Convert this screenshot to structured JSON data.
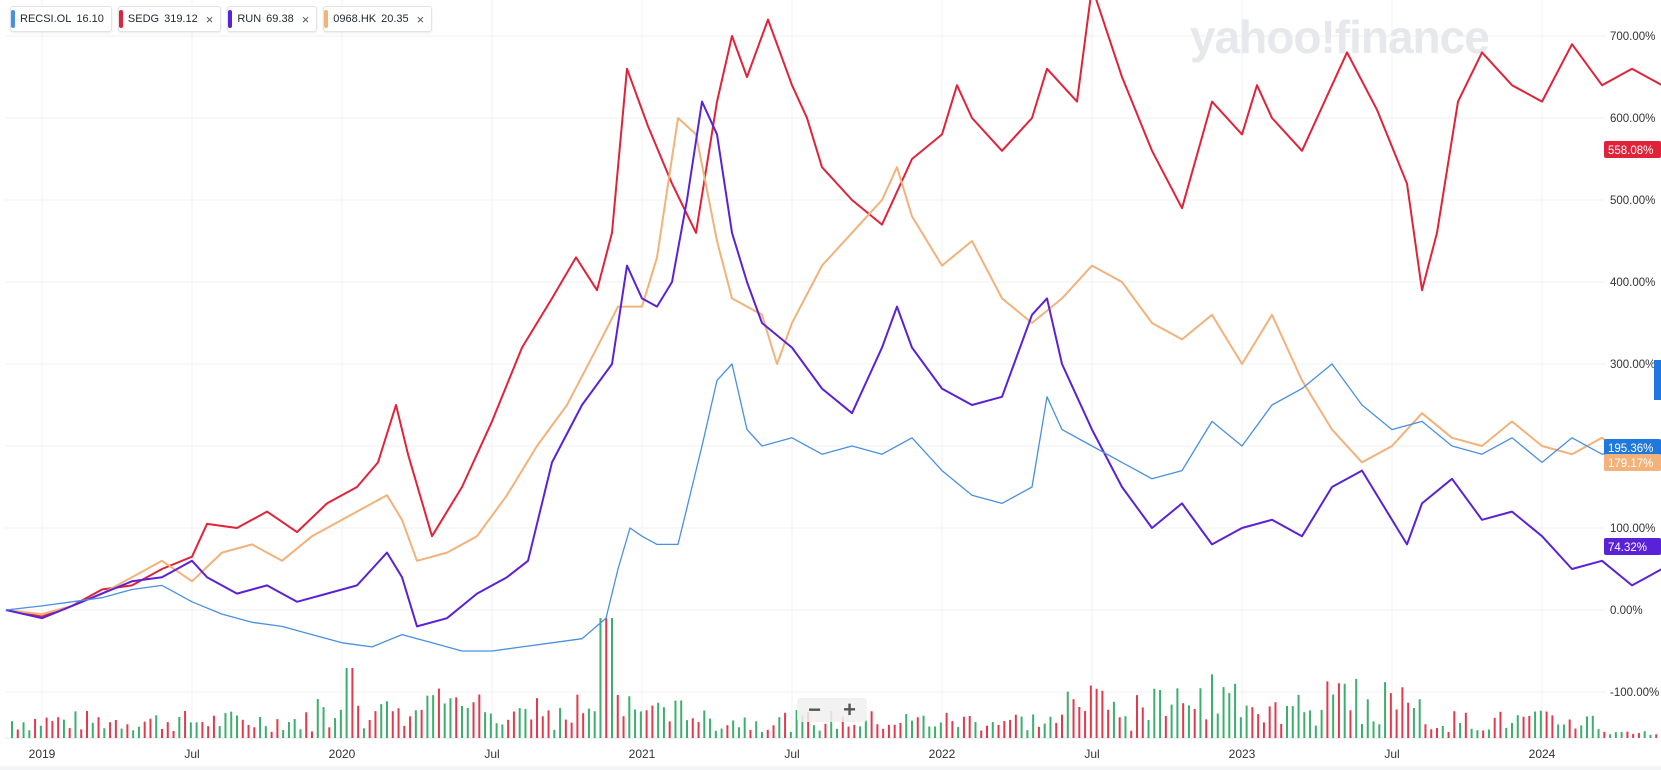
{
  "legend": [
    {
      "symbol": "RECSI.OL",
      "value": "16.10",
      "color": "#4a90e2",
      "closable": false
    },
    {
      "symbol": "SEDG",
      "value": "319.12",
      "color": "#e0233a",
      "closable": true
    },
    {
      "symbol": "RUN",
      "value": "69.38",
      "color": "#5a22d8",
      "closable": true
    },
    {
      "symbol": "0968.HK",
      "value": "20.35",
      "color": "#f2b27a",
      "closable": true
    }
  ],
  "watermark": "yahoo!finance",
  "zoom": {
    "minus": "−",
    "plus": "+"
  },
  "chart_data": {
    "type": "line",
    "x_labels": [
      "2019",
      "Jul",
      "2020",
      "Jul",
      "2021",
      "Jul",
      "2022",
      "Jul",
      "2023",
      "Jul",
      "2024"
    ],
    "ylim": [
      -150,
      750
    ],
    "y_ticks": [
      "700.00%",
      "600.00%",
      "500.00%",
      "400.00%",
      "300.00%",
      "200.00%",
      "100.00%",
      "0.00%",
      "-100.00%"
    ],
    "end_labels": [
      {
        "text": "558.08%",
        "color": "#e0233a",
        "value": 558.08
      },
      {
        "text": "195.36%",
        "color": "#1f78e0",
        "value": 195.36
      },
      {
        "text": "179.17%",
        "color": "#f2b27a",
        "value": 179.17
      },
      {
        "text": "74.32%",
        "color": "#5a22d8",
        "value": 74.32
      }
    ],
    "series": [
      {
        "name": "SEDG",
        "color": "#e0233a",
        "points": [
          [
            2018.88,
            0
          ],
          [
            2019.0,
            -8
          ],
          [
            2019.1,
            5
          ],
          [
            2019.2,
            25
          ],
          [
            2019.3,
            30
          ],
          [
            2019.4,
            50
          ],
          [
            2019.5,
            65
          ],
          [
            2019.55,
            105
          ],
          [
            2019.65,
            100
          ],
          [
            2019.75,
            120
          ],
          [
            2019.85,
            95
          ],
          [
            2019.95,
            130
          ],
          [
            2020.05,
            150
          ],
          [
            2020.12,
            180
          ],
          [
            2020.18,
            250
          ],
          [
            2020.22,
            190
          ],
          [
            2020.3,
            90
          ],
          [
            2020.4,
            150
          ],
          [
            2020.5,
            230
          ],
          [
            2020.6,
            320
          ],
          [
            2020.7,
            380
          ],
          [
            2020.78,
            430
          ],
          [
            2020.85,
            390
          ],
          [
            2020.9,
            460
          ],
          [
            2020.95,
            660
          ],
          [
            2021.02,
            590
          ],
          [
            2021.1,
            520
          ],
          [
            2021.18,
            460
          ],
          [
            2021.25,
            620
          ],
          [
            2021.3,
            700
          ],
          [
            2021.35,
            650
          ],
          [
            2021.42,
            720
          ],
          [
            2021.5,
            640
          ],
          [
            2021.55,
            600
          ],
          [
            2021.6,
            540
          ],
          [
            2021.7,
            500
          ],
          [
            2021.8,
            470
          ],
          [
            2021.9,
            550
          ],
          [
            2022.0,
            580
          ],
          [
            2022.05,
            640
          ],
          [
            2022.1,
            600
          ],
          [
            2022.2,
            560
          ],
          [
            2022.3,
            600
          ],
          [
            2022.35,
            660
          ],
          [
            2022.45,
            620
          ],
          [
            2022.5,
            760
          ],
          [
            2022.6,
            650
          ],
          [
            2022.7,
            560
          ],
          [
            2022.8,
            490
          ],
          [
            2022.9,
            620
          ],
          [
            2023.0,
            580
          ],
          [
            2023.05,
            640
          ],
          [
            2023.1,
            600
          ],
          [
            2023.2,
            560
          ],
          [
            2023.3,
            640
          ],
          [
            2023.35,
            680
          ],
          [
            2023.45,
            610
          ],
          [
            2023.55,
            520
          ],
          [
            2023.6,
            390
          ],
          [
            2023.65,
            460
          ],
          [
            2023.72,
            620
          ],
          [
            2023.8,
            680
          ],
          [
            2023.9,
            640
          ],
          [
            2024.0,
            620
          ],
          [
            2024.1,
            690
          ],
          [
            2024.2,
            640
          ],
          [
            2024.3,
            660
          ],
          [
            2024.4,
            640
          ],
          [
            2024.5,
            610
          ],
          [
            2024.55,
            520
          ],
          [
            2024.6,
            580
          ],
          [
            2024.65,
            560
          ],
          [
            2024.7,
            558.08
          ]
        ]
      },
      {
        "name": "0968.HK",
        "color": "#f2b27a",
        "points": [
          [
            2018.88,
            0
          ],
          [
            2019.0,
            -5
          ],
          [
            2019.1,
            5
          ],
          [
            2019.2,
            20
          ],
          [
            2019.3,
            40
          ],
          [
            2019.4,
            60
          ],
          [
            2019.5,
            35
          ],
          [
            2019.6,
            70
          ],
          [
            2019.7,
            80
          ],
          [
            2019.8,
            60
          ],
          [
            2019.9,
            90
          ],
          [
            2020.0,
            110
          ],
          [
            2020.1,
            130
          ],
          [
            2020.15,
            140
          ],
          [
            2020.2,
            110
          ],
          [
            2020.25,
            60
          ],
          [
            2020.35,
            70
          ],
          [
            2020.45,
            90
          ],
          [
            2020.55,
            140
          ],
          [
            2020.65,
            200
          ],
          [
            2020.75,
            250
          ],
          [
            2020.85,
            320
          ],
          [
            2020.92,
            370
          ],
          [
            2021.0,
            370
          ],
          [
            2021.05,
            430
          ],
          [
            2021.12,
            600
          ],
          [
            2021.18,
            580
          ],
          [
            2021.25,
            450
          ],
          [
            2021.3,
            380
          ],
          [
            2021.4,
            360
          ],
          [
            2021.45,
            300
          ],
          [
            2021.5,
            350
          ],
          [
            2021.6,
            420
          ],
          [
            2021.7,
            460
          ],
          [
            2021.8,
            500
          ],
          [
            2021.85,
            540
          ],
          [
            2021.9,
            480
          ],
          [
            2022.0,
            420
          ],
          [
            2022.1,
            450
          ],
          [
            2022.2,
            380
          ],
          [
            2022.3,
            350
          ],
          [
            2022.4,
            380
          ],
          [
            2022.5,
            420
          ],
          [
            2022.6,
            400
          ],
          [
            2022.7,
            350
          ],
          [
            2022.8,
            330
          ],
          [
            2022.9,
            360
          ],
          [
            2023.0,
            300
          ],
          [
            2023.1,
            360
          ],
          [
            2023.2,
            280
          ],
          [
            2023.3,
            220
          ],
          [
            2023.4,
            180
          ],
          [
            2023.5,
            200
          ],
          [
            2023.6,
            240
          ],
          [
            2023.7,
            210
          ],
          [
            2023.8,
            200
          ],
          [
            2023.9,
            230
          ],
          [
            2024.0,
            200
          ],
          [
            2024.1,
            190
          ],
          [
            2024.2,
            210
          ],
          [
            2024.3,
            180
          ],
          [
            2024.4,
            190
          ],
          [
            2024.5,
            200
          ],
          [
            2024.6,
            190
          ],
          [
            2024.7,
            179.17
          ]
        ]
      },
      {
        "name": "RUN",
        "color": "#5a22d8",
        "points": [
          [
            2018.88,
            0
          ],
          [
            2019.0,
            -10
          ],
          [
            2019.1,
            5
          ],
          [
            2019.2,
            20
          ],
          [
            2019.3,
            35
          ],
          [
            2019.4,
            40
          ],
          [
            2019.5,
            60
          ],
          [
            2019.55,
            40
          ],
          [
            2019.65,
            20
          ],
          [
            2019.75,
            30
          ],
          [
            2019.85,
            10
          ],
          [
            2019.95,
            20
          ],
          [
            2020.05,
            30
          ],
          [
            2020.15,
            70
          ],
          [
            2020.2,
            40
          ],
          [
            2020.25,
            -20
          ],
          [
            2020.35,
            -10
          ],
          [
            2020.45,
            20
          ],
          [
            2020.55,
            40
          ],
          [
            2020.62,
            60
          ],
          [
            2020.7,
            180
          ],
          [
            2020.8,
            250
          ],
          [
            2020.9,
            300
          ],
          [
            2020.95,
            420
          ],
          [
            2021.0,
            380
          ],
          [
            2021.05,
            370
          ],
          [
            2021.1,
            400
          ],
          [
            2021.15,
            500
          ],
          [
            2021.2,
            620
          ],
          [
            2021.25,
            580
          ],
          [
            2021.3,
            460
          ],
          [
            2021.35,
            400
          ],
          [
            2021.4,
            350
          ],
          [
            2021.5,
            320
          ],
          [
            2021.6,
            270
          ],
          [
            2021.7,
            240
          ],
          [
            2021.8,
            320
          ],
          [
            2021.85,
            370
          ],
          [
            2021.9,
            320
          ],
          [
            2022.0,
            270
          ],
          [
            2022.1,
            250
          ],
          [
            2022.2,
            260
          ],
          [
            2022.3,
            360
          ],
          [
            2022.35,
            380
          ],
          [
            2022.4,
            300
          ],
          [
            2022.5,
            220
          ],
          [
            2022.6,
            150
          ],
          [
            2022.7,
            100
          ],
          [
            2022.8,
            130
          ],
          [
            2022.9,
            80
          ],
          [
            2023.0,
            100
          ],
          [
            2023.1,
            110
          ],
          [
            2023.2,
            90
          ],
          [
            2023.3,
            150
          ],
          [
            2023.4,
            170
          ],
          [
            2023.5,
            110
          ],
          [
            2023.55,
            80
          ],
          [
            2023.6,
            130
          ],
          [
            2023.7,
            160
          ],
          [
            2023.8,
            110
          ],
          [
            2023.9,
            120
          ],
          [
            2024.0,
            90
          ],
          [
            2024.1,
            50
          ],
          [
            2024.2,
            60
          ],
          [
            2024.3,
            30
          ],
          [
            2024.4,
            50
          ],
          [
            2024.5,
            45
          ],
          [
            2024.6,
            50
          ],
          [
            2024.7,
            74.32
          ]
        ]
      },
      {
        "name": "RECSI.OL",
        "color": "#4a90e2",
        "points": [
          [
            2018.88,
            0
          ],
          [
            2019.0,
            5
          ],
          [
            2019.1,
            10
          ],
          [
            2019.2,
            15
          ],
          [
            2019.3,
            25
          ],
          [
            2019.4,
            30
          ],
          [
            2019.5,
            10
          ],
          [
            2019.6,
            -5
          ],
          [
            2019.7,
            -15
          ],
          [
            2019.8,
            -20
          ],
          [
            2019.9,
            -30
          ],
          [
            2020.0,
            -40
          ],
          [
            2020.1,
            -45
          ],
          [
            2020.2,
            -30
          ],
          [
            2020.3,
            -40
          ],
          [
            2020.4,
            -50
          ],
          [
            2020.5,
            -50
          ],
          [
            2020.6,
            -45
          ],
          [
            2020.7,
            -40
          ],
          [
            2020.8,
            -35
          ],
          [
            2020.88,
            -10
          ],
          [
            2020.92,
            50
          ],
          [
            2020.96,
            100
          ],
          [
            2021.0,
            90
          ],
          [
            2021.05,
            80
          ],
          [
            2021.12,
            80
          ],
          [
            2021.2,
            200
          ],
          [
            2021.25,
            280
          ],
          [
            2021.3,
            300
          ],
          [
            2021.35,
            220
          ],
          [
            2021.4,
            200
          ],
          [
            2021.5,
            210
          ],
          [
            2021.6,
            190
          ],
          [
            2021.7,
            200
          ],
          [
            2021.8,
            190
          ],
          [
            2021.9,
            210
          ],
          [
            2022.0,
            170
          ],
          [
            2022.1,
            140
          ],
          [
            2022.2,
            130
          ],
          [
            2022.3,
            150
          ],
          [
            2022.35,
            260
          ],
          [
            2022.4,
            220
          ],
          [
            2022.5,
            200
          ],
          [
            2022.6,
            180
          ],
          [
            2022.7,
            160
          ],
          [
            2022.8,
            170
          ],
          [
            2022.9,
            230
          ],
          [
            2023.0,
            200
          ],
          [
            2023.1,
            250
          ],
          [
            2023.2,
            270
          ],
          [
            2023.3,
            300
          ],
          [
            2023.4,
            250
          ],
          [
            2023.5,
            220
          ],
          [
            2023.6,
            230
          ],
          [
            2023.7,
            200
          ],
          [
            2023.8,
            190
          ],
          [
            2023.9,
            210
          ],
          [
            2024.0,
            180
          ],
          [
            2024.1,
            210
          ],
          [
            2024.2,
            190
          ],
          [
            2024.3,
            200
          ],
          [
            2024.4,
            180
          ],
          [
            2024.5,
            200
          ],
          [
            2024.6,
            190
          ],
          [
            2024.7,
            195.36
          ]
        ]
      }
    ],
    "volume": {
      "up_color": "#27a55d",
      "down_color": "#e0233a"
    }
  }
}
